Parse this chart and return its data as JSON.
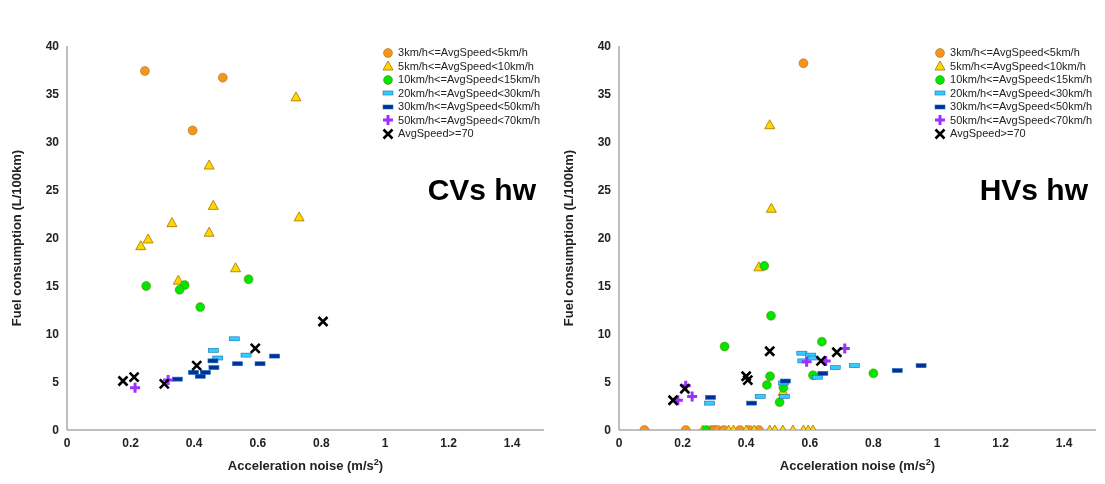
{
  "chart_data": [
    {
      "type": "scatter",
      "xlabel": "Acceleration noise (m/s$^{2}$)",
      "ylabel": "Fuel consumption (L/100km)",
      "xlim": [
        0,
        1.5
      ],
      "xticks": [
        0,
        0.2,
        0.4,
        0.6,
        0.8,
        1,
        1.2,
        1.4
      ],
      "ylim": [
        0,
        40
      ],
      "yticks": [
        0,
        5,
        10,
        15,
        20,
        25,
        30,
        35,
        40
      ],
      "grid": false,
      "legend": "top right",
      "annotations": [
        "CVs hw"
      ],
      "series": [
        {
          "name": "3km/h<=AvgSpeed<5km/h",
          "color": "#f7941d",
          "marker": "circle",
          "x": [
            0.245,
            0.49,
            0.395
          ],
          "values": [
            37.4,
            36.7,
            31.2
          ]
        },
        {
          "name": "5km/h<=AvgSpeed<10km/h",
          "color": "#ffd700",
          "marker": "triangle",
          "x": [
            0.72,
            0.447,
            0.46,
            0.73,
            0.33,
            0.447,
            0.255,
            0.232,
            0.53,
            0.35
          ],
          "values": [
            34.7,
            27.6,
            23.4,
            22.2,
            21.6,
            20.6,
            19.9,
            19.2,
            16.9,
            15.6
          ]
        },
        {
          "name": "10km/h<=AvgSpeed<15km/h",
          "color": "#00e600",
          "marker": "circle",
          "x": [
            0.249,
            0.37,
            0.354,
            0.571,
            0.419
          ],
          "values": [
            15.0,
            15.1,
            14.6,
            15.7,
            12.8
          ]
        },
        {
          "name": "20km/h<=AvgSpeed<30km/h",
          "color": "#33ccff",
          "marker": "square",
          "x": [
            0.526,
            0.46,
            0.474,
            0.563
          ],
          "values": [
            9.5,
            8.3,
            7.5,
            7.8
          ]
        },
        {
          "name": "30km/h<=AvgSpeed<50km/h",
          "color": "#002f9e",
          "marker": "square",
          "x": [
            0.459,
            0.462,
            0.653,
            0.536,
            0.607,
            0.435,
            0.398,
            0.419,
            0.347
          ],
          "values": [
            7.2,
            6.5,
            7.7,
            6.9,
            6.9,
            6.0,
            6.0,
            5.6,
            5.3
          ]
        },
        {
          "name": "50km/h<=AvgSpeed<70km/h",
          "color": "#9b30ff",
          "marker": "cross",
          "x": [
            0.214,
            0.318
          ],
          "values": [
            4.4,
            5.2
          ]
        },
        {
          "name": "AvgSpeed>=70",
          "color": "#000000",
          "marker": "x",
          "x": [
            0.805,
            0.592,
            0.408,
            0.211,
            0.176,
            0.306
          ],
          "values": [
            11.3,
            8.5,
            6.7,
            5.5,
            5.1,
            4.8
          ]
        }
      ]
    },
    {
      "type": "scatter",
      "xlabel": "Acceleration noise (m/s$^{2}$)",
      "ylabel": "Fuel consumption (L/100km)",
      "xlim": [
        0,
        1.5
      ],
      "xticks": [
        0,
        0.2,
        0.4,
        0.6,
        0.8,
        1,
        1.2,
        1.4
      ],
      "ylim": [
        0,
        40
      ],
      "yticks": [
        0,
        5,
        10,
        15,
        20,
        25,
        30,
        35,
        40
      ],
      "grid": false,
      "legend": "top right",
      "annotations": [
        "HVs hw"
      ],
      "series": [
        {
          "name": "3km/h<=AvgSpeed<5km/h",
          "color": "#f7941d",
          "marker": "circle",
          "x": [
            0.58,
            0.08,
            0.21,
            0.29,
            0.3,
            0.31,
            0.33,
            0.38,
            0.41,
            0.44
          ],
          "values": [
            38.2,
            0,
            0,
            0,
            0,
            0,
            0,
            0,
            0,
            0
          ]
        },
        {
          "name": "5km/h<=AvgSpeed<10km/h",
          "color": "#ffd700",
          "marker": "triangle",
          "x": [
            0.474,
            0.479,
            0.44,
            0.516,
            0.263,
            0.345,
            0.36,
            0.4,
            0.425,
            0.474,
            0.49,
            0.515,
            0.547,
            0.58,
            0.595,
            0.61
          ],
          "values": [
            31.8,
            23.1,
            17.0,
            4.0,
            0,
            0,
            0,
            0,
            0,
            0,
            0,
            0,
            0,
            0,
            0,
            0
          ]
        },
        {
          "name": "10km/h<=AvgSpeed<15km/h",
          "color": "#00e600",
          "marker": "circle",
          "x": [
            0.457,
            0.478,
            0.332,
            0.638,
            0.475,
            0.465,
            0.517,
            0.505,
            0.61,
            0.274,
            0.8
          ],
          "values": [
            17.1,
            11.9,
            8.7,
            9.2,
            5.6,
            4.7,
            4.4,
            2.9,
            5.7,
            0,
            5.9
          ]
        },
        {
          "name": "20km/h<=AvgSpeed<30km/h",
          "color": "#33ccff",
          "marker": "square",
          "x": [
            0.575,
            0.603,
            0.61,
            0.578,
            0.68,
            0.74,
            0.624,
            0.517,
            0.444,
            0.52,
            0.285
          ],
          "values": [
            8.0,
            7.8,
            7.5,
            7.2,
            6.5,
            6.7,
            5.5,
            4.9,
            3.5,
            3.5,
            2.8
          ]
        },
        {
          "name": "30km/h<=AvgSpeed<50km/h",
          "color": "#002f9e",
          "marker": "square",
          "x": [
            0.288,
            0.417,
            0.523,
            0.641,
            0.875,
            0.95
          ],
          "values": [
            3.4,
            2.8,
            5.1,
            5.9,
            6.2,
            6.7
          ]
        },
        {
          "name": "50km/h<=AvgSpeed<70km/h",
          "color": "#9b30ff",
          "marker": "cross",
          "x": [
            0.21,
            0.23,
            0.185,
            0.59,
            0.65,
            0.71
          ],
          "values": [
            4.6,
            3.5,
            3.1,
            7.1,
            7.2,
            8.5
          ]
        },
        {
          "name": "AvgSpeed>=70",
          "color": "#000000",
          "marker": "x",
          "x": [
            0.474,
            0.4,
            0.405,
            0.207,
            0.17,
            0.635,
            0.685
          ],
          "values": [
            8.2,
            5.6,
            5.2,
            4.3,
            3.1,
            7.2,
            8.1
          ]
        }
      ]
    }
  ]
}
